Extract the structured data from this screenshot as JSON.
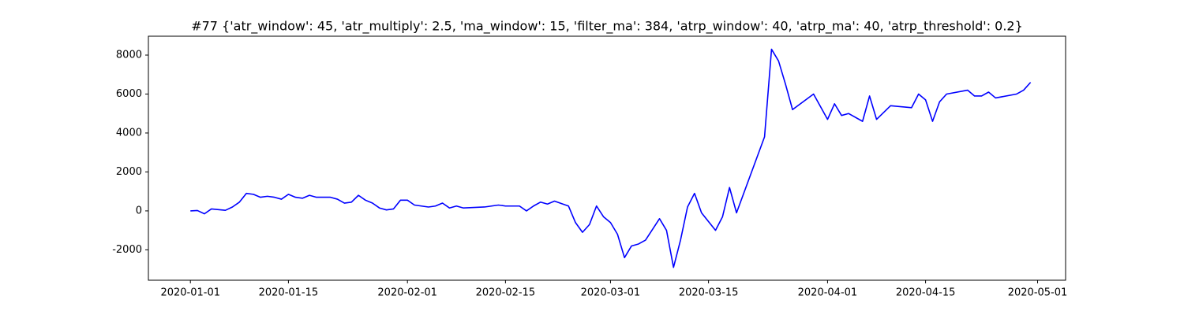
{
  "chart_data": {
    "type": "line",
    "title": "#77 {'atr_window': 45, 'atr_multiply': 2.5, 'ma_window': 15, 'filter_ma': 384, 'atrp_window': 40, 'atrp_ma': 40, 'atrp_threshold': 0.2}",
    "x": [
      "2020-01-01",
      "2020-01-02",
      "2020-01-03",
      "2020-01-04",
      "2020-01-06",
      "2020-01-07",
      "2020-01-08",
      "2020-01-09",
      "2020-01-10",
      "2020-01-11",
      "2020-01-12",
      "2020-01-13",
      "2020-01-14",
      "2020-01-15",
      "2020-01-16",
      "2020-01-17",
      "2020-01-18",
      "2020-01-19",
      "2020-01-21",
      "2020-01-22",
      "2020-01-23",
      "2020-01-24",
      "2020-01-25",
      "2020-01-26",
      "2020-01-27",
      "2020-01-28",
      "2020-01-29",
      "2020-01-30",
      "2020-01-31",
      "2020-02-01",
      "2020-02-02",
      "2020-02-04",
      "2020-02-05",
      "2020-02-06",
      "2020-02-07",
      "2020-02-08",
      "2020-02-09",
      "2020-02-12",
      "2020-02-13",
      "2020-02-14",
      "2020-02-15",
      "2020-02-17",
      "2020-02-18",
      "2020-02-19",
      "2020-02-20",
      "2020-02-21",
      "2020-02-22",
      "2020-02-24",
      "2020-02-25",
      "2020-02-26",
      "2020-02-27",
      "2020-02-28",
      "2020-02-29",
      "2020-03-01",
      "2020-03-02",
      "2020-03-03",
      "2020-03-04",
      "2020-03-05",
      "2020-03-06",
      "2020-03-08",
      "2020-03-09",
      "2020-03-10",
      "2020-03-11",
      "2020-03-12",
      "2020-03-13",
      "2020-03-14",
      "2020-03-16",
      "2020-03-17",
      "2020-03-18",
      "2020-03-19",
      "2020-03-23",
      "2020-03-24",
      "2020-03-25",
      "2020-03-26",
      "2020-03-27",
      "2020-03-30",
      "2020-04-01",
      "2020-04-02",
      "2020-04-03",
      "2020-04-04",
      "2020-04-06",
      "2020-04-07",
      "2020-04-08",
      "2020-04-10",
      "2020-04-13",
      "2020-04-14",
      "2020-04-15",
      "2020-04-16",
      "2020-04-17",
      "2020-04-18",
      "2020-04-21",
      "2020-04-22",
      "2020-04-23",
      "2020-04-24",
      "2020-04-25",
      "2020-04-28",
      "2020-04-29",
      "2020-04-30"
    ],
    "series": [
      {
        "color": "#0000ff",
        "values": [
          0,
          20,
          -150,
          100,
          30,
          200,
          450,
          900,
          850,
          700,
          750,
          700,
          600,
          850,
          700,
          650,
          800,
          700,
          700,
          600,
          400,
          450,
          800,
          550,
          400,
          150,
          50,
          100,
          550,
          550,
          300,
          200,
          250,
          400,
          150,
          250,
          150,
          200,
          250,
          300,
          250,
          250,
          0,
          250,
          450,
          350,
          500,
          250,
          -600,
          -1100,
          -700,
          250,
          -300,
          -600,
          -1200,
          -2400,
          -1800,
          -1700,
          -1500,
          -400,
          -1000,
          -2900,
          -1500,
          200,
          900,
          -100,
          -1000,
          -300,
          1200,
          -100,
          3800,
          8300,
          7700,
          6500,
          5200,
          6000,
          4700,
          5500,
          4900,
          5000,
          4600,
          5900,
          4700,
          5400,
          5300,
          6000,
          5700,
          4600,
          5600,
          6000,
          6200,
          5900,
          5900,
          6100,
          5800,
          6000,
          6200,
          6600
        ]
      }
    ],
    "xlim": [
      "2019-12-26",
      "2020-05-05"
    ],
    "xticks": [
      "2020-01-01",
      "2020-01-15",
      "2020-02-01",
      "2020-02-15",
      "2020-03-01",
      "2020-03-15",
      "2020-04-01",
      "2020-04-15",
      "2020-05-01"
    ],
    "ylim": [
      -3560,
      8970
    ],
    "yticks": [
      -2000,
      0,
      2000,
      4000,
      6000,
      8000
    ],
    "grid": false
  }
}
